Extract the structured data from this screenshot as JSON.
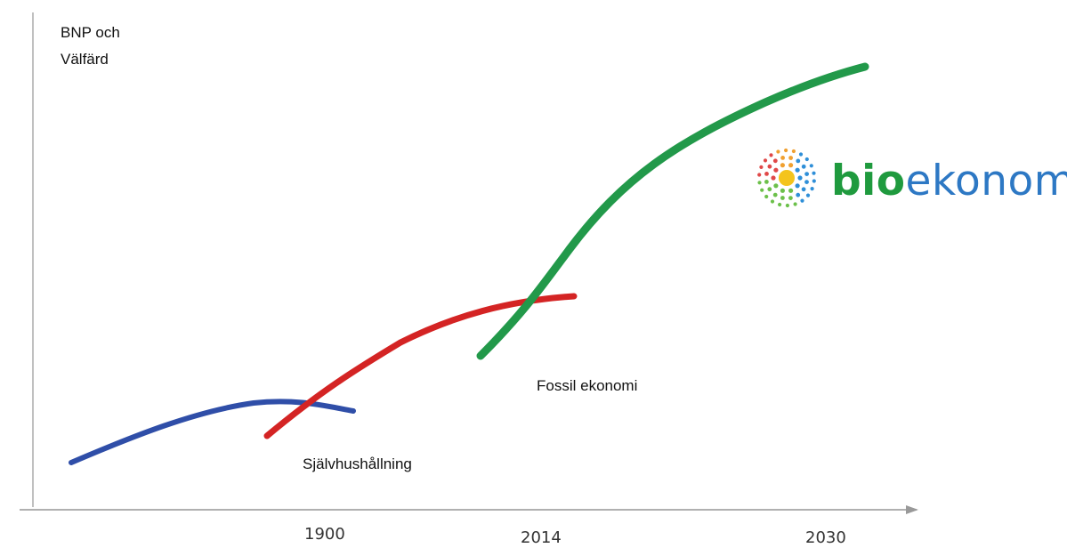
{
  "chart_data": {
    "type": "line",
    "ylabel_lines": [
      "BNP och",
      "Välfärd"
    ],
    "xlabel": "",
    "x_ticks": [
      "1900",
      "2014",
      "2030"
    ],
    "grid": false,
    "series": [
      {
        "name": "Självhushållning",
        "color": "#2f4ea8"
      },
      {
        "name": "Fossil ekonomi",
        "color": "#d42424"
      },
      {
        "name": "bioekonomi",
        "color": "#22994a"
      }
    ]
  },
  "logo": {
    "bio": "bio",
    "ekonomi": "ekonomi",
    "dot_colors": [
      "#e04848",
      "#f0a030",
      "#f4d020",
      "#6cc04a",
      "#2f8fd8",
      "#8a5fc8"
    ]
  }
}
